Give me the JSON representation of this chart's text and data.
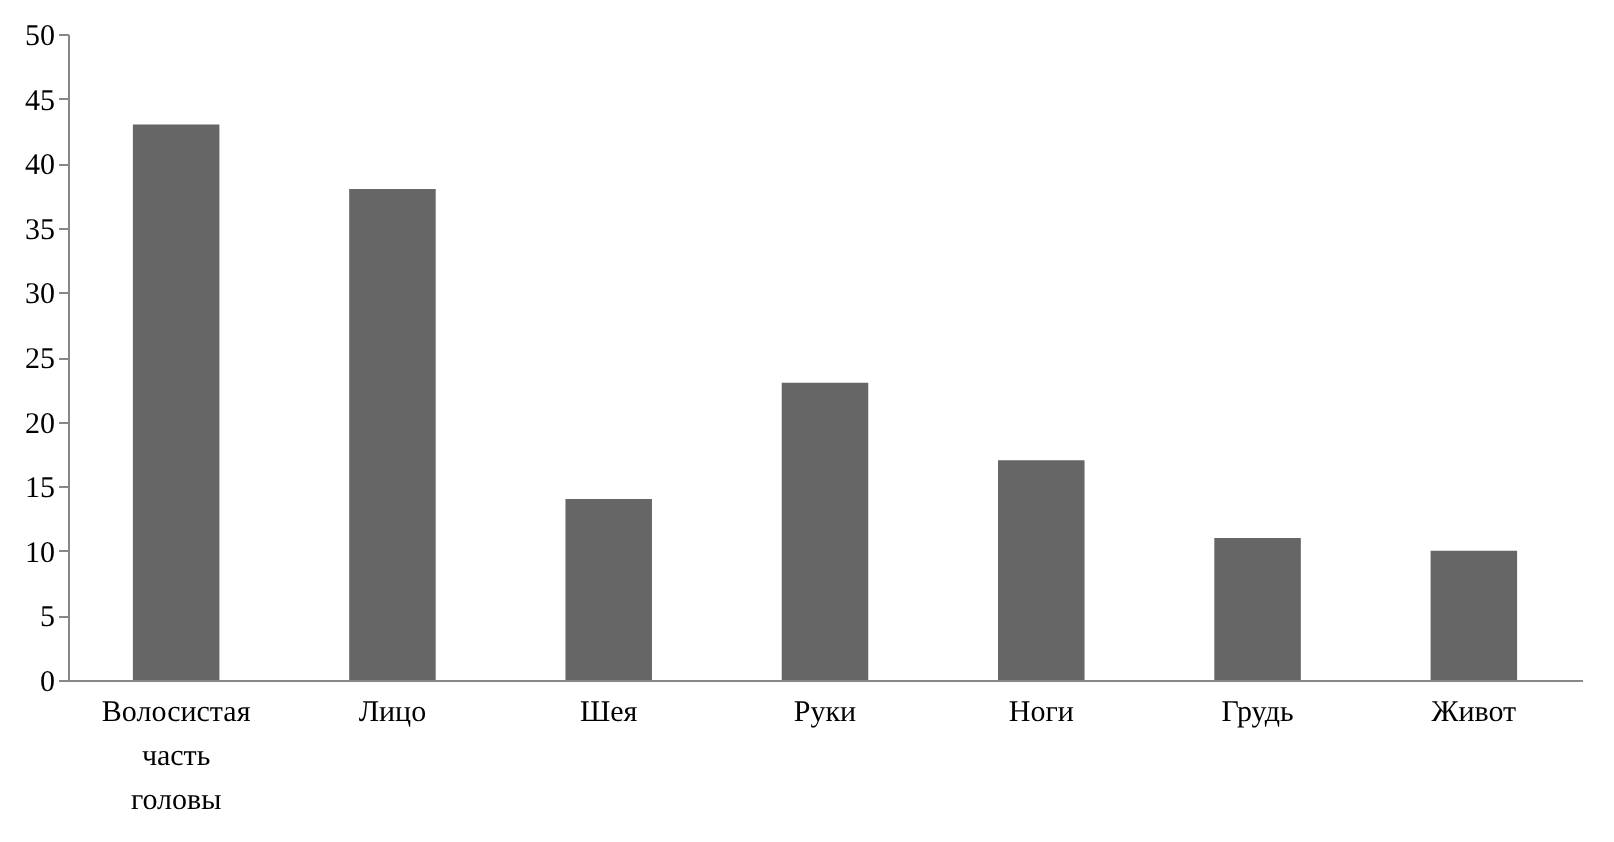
{
  "chart_data": {
    "type": "bar",
    "categories": [
      "Волосистая часть головы",
      "Лицо",
      "Шея",
      "Руки",
      "Ноги",
      "Грудь",
      "Живот"
    ],
    "values": [
      43,
      38,
      14,
      23,
      17,
      11,
      10
    ],
    "color": "#666666",
    "ylim": [
      0,
      50
    ],
    "yticks": [
      0,
      5,
      10,
      15,
      20,
      25,
      30,
      35,
      40,
      45,
      50
    ],
    "grid": false
  }
}
